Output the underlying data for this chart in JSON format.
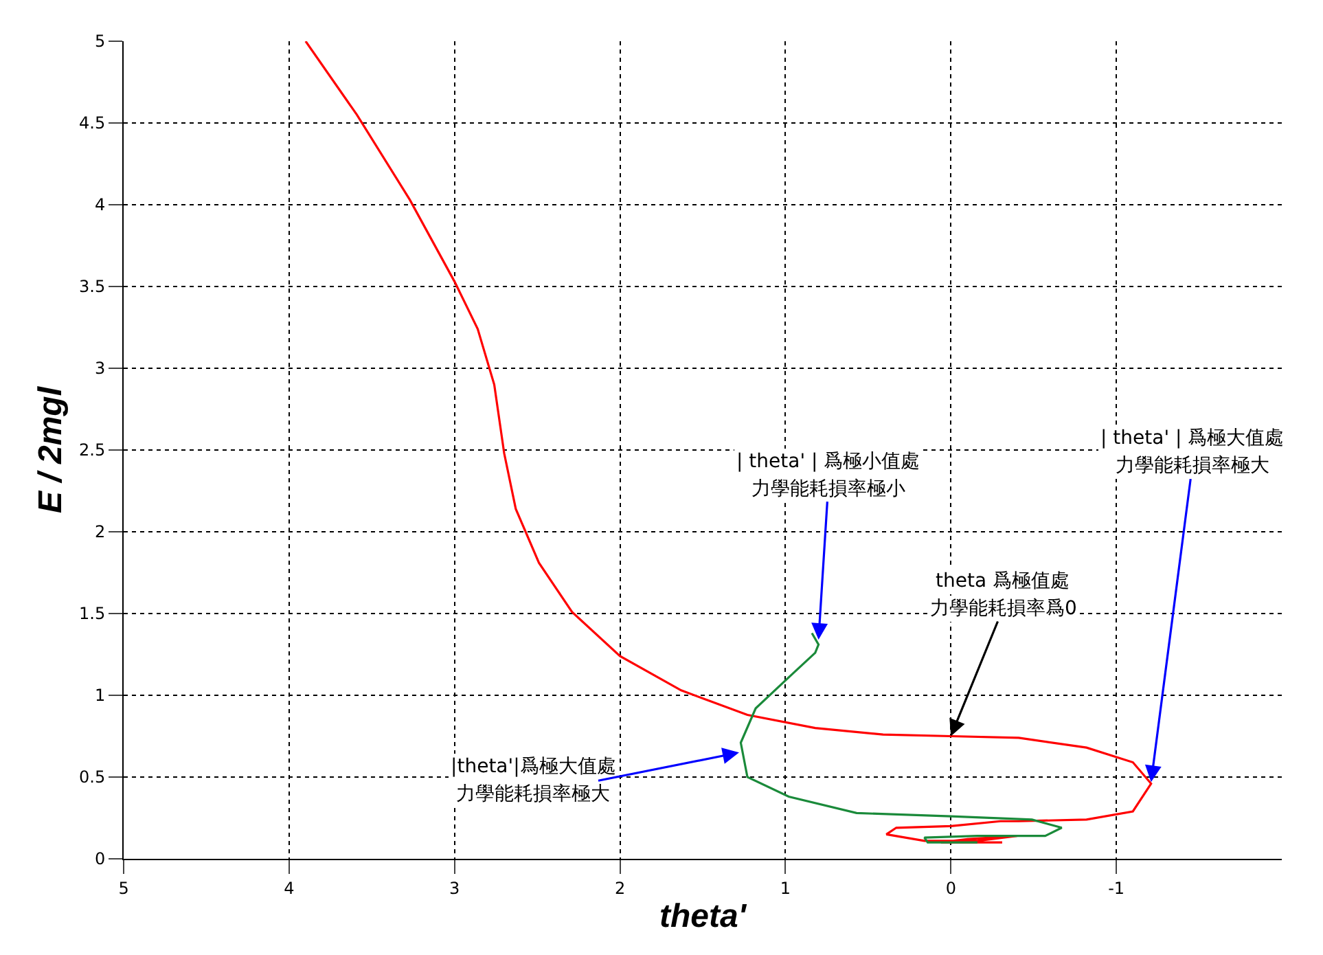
{
  "chart_data": {
    "type": "line",
    "xlabel": "theta'",
    "ylabel": "E / 2mgl",
    "xlim": [
      5,
      -2
    ],
    "xticks": [
      5,
      4,
      3,
      2,
      1,
      0,
      -1
    ],
    "ylim": [
      0,
      5
    ],
    "yticks": [
      0,
      0.5,
      1,
      1.5,
      2,
      2.5,
      3,
      3.5,
      4,
      4.5,
      5
    ],
    "grid": true,
    "marker": "none",
    "line_style": "solid",
    "series": [
      {
        "color": "#ff0000",
        "x": [
          3.9,
          3.59,
          3.27,
          3.0,
          2.86,
          2.76,
          2.7,
          2.63,
          2.49,
          2.29,
          2.0,
          1.63,
          1.23,
          0.82,
          0.41,
          0,
          -0.41,
          -0.82,
          -1.1,
          -1.21,
          -1.1,
          -0.82,
          -0.41,
          -0.3,
          0,
          0.33,
          0.39,
          0.16,
          -0.16,
          -0.4,
          -0.1,
          0.06,
          -0.31
        ],
        "values": [
          5.0,
          4.55,
          4.03,
          3.53,
          3.24,
          2.9,
          2.48,
          2.14,
          1.81,
          1.51,
          1.24,
          1.03,
          0.88,
          0.8,
          0.76,
          0.75,
          0.74,
          0.68,
          0.59,
          0.46,
          0.29,
          0.24,
          0.23,
          0.23,
          0.2,
          0.19,
          0.15,
          0.11,
          0.11,
          0.14,
          0.12,
          0.1,
          0.1
        ]
      },
      {
        "color": "#1a8a3a",
        "x": [
          0.84,
          0.8,
          0.82,
          0.98,
          1.18,
          1.27,
          1.23,
          0.98,
          0.57,
          0,
          -0.49,
          -0.67,
          -0.57,
          -0.16,
          0.16,
          0.14,
          -0.16
        ],
        "values": [
          1.38,
          1.31,
          1.26,
          1.11,
          0.92,
          0.71,
          0.5,
          0.38,
          0.28,
          0.26,
          0.24,
          0.19,
          0.14,
          0.14,
          0.13,
          0.1,
          0.1
        ]
      }
    ],
    "annotations": [
      "| theta' | 爲極小值處",
      {
        "text": "力學能耗損率極小",
        "x": 0.8,
        "y": 1.34
      },
      "| theta' | 爲極大值處",
      {
        "text": "力學能耗損率極大",
        "x": -1.21,
        "y": 0.47
      },
      "theta 爲極值處",
      {
        "text": "力學能耗損率爲0",
        "x": 0,
        "y": 0.75
      },
      "|theta'|爲極大值處",
      {
        "text": "力學能耗損率極大",
        "x": 1.28,
        "y": 0.65
      }
    ]
  }
}
